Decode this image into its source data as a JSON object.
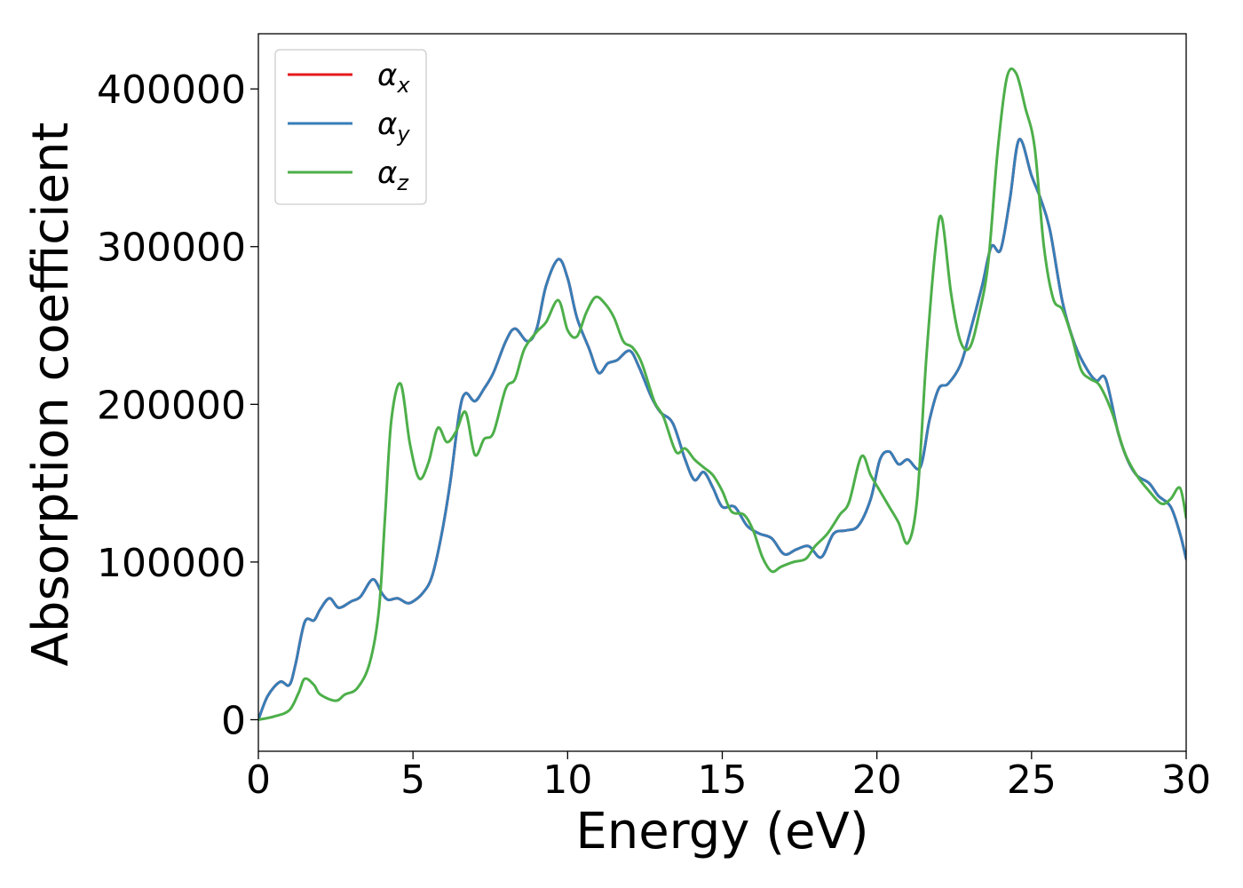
{
  "chart_data": {
    "type": "line",
    "title": "",
    "xlabel": "Energy (eV)",
    "ylabel": "Absorption coefficient",
    "xlim": [
      0,
      30
    ],
    "ylim": [
      -20000,
      435000
    ],
    "xticks": [
      0,
      5,
      10,
      15,
      20,
      25,
      30
    ],
    "xtick_labels": [
      "0",
      "5",
      "10",
      "15",
      "20",
      "25",
      "30"
    ],
    "yticks": [
      0,
      100000,
      200000,
      300000,
      400000
    ],
    "ytick_labels": [
      "0",
      "100000",
      "200000",
      "300000",
      "400000"
    ],
    "grid": false,
    "legend_position": "upper-left",
    "series": [
      {
        "name": "α_x",
        "legend_base": "α",
        "legend_sub": "x",
        "color": "#e41a1c",
        "x": [
          0,
          0.3,
          0.7,
          1.0,
          1.2,
          1.5,
          1.8,
          2.0,
          2.3,
          2.6,
          3.0,
          3.3,
          3.7,
          4.0,
          4.2,
          4.5,
          4.8,
          5.0,
          5.3,
          5.6,
          5.9,
          6.2,
          6.5,
          6.7,
          7.0,
          7.3,
          7.6,
          8.0,
          8.3,
          8.7,
          9.0,
          9.3,
          9.7,
          10.0,
          10.3,
          10.7,
          11.0,
          11.3,
          11.6,
          12.0,
          12.3,
          12.7,
          13.0,
          13.4,
          13.8,
          14.1,
          14.4,
          14.7,
          15.0,
          15.4,
          15.8,
          16.2,
          16.6,
          17.0,
          17.4,
          17.8,
          18.2,
          18.6,
          19.0,
          19.4,
          19.8,
          20.1,
          20.4,
          20.7,
          21.0,
          21.4,
          21.7,
          22.0,
          22.3,
          22.7,
          23.0,
          23.4,
          23.7,
          24.0,
          24.3,
          24.6,
          25.0,
          25.3,
          25.6,
          26.0,
          26.4,
          26.8,
          27.1,
          27.4,
          27.8,
          28.1,
          28.4,
          28.8,
          29.1,
          29.5,
          29.8,
          30.0
        ],
        "values": [
          0,
          15000,
          24000,
          22000,
          35000,
          62000,
          63000,
          70000,
          77000,
          71000,
          75000,
          78000,
          89000,
          80000,
          76000,
          77000,
          74000,
          75000,
          80000,
          90000,
          115000,
          150000,
          195000,
          207000,
          202000,
          210000,
          220000,
          240000,
          248000,
          240000,
          248000,
          275000,
          292000,
          280000,
          255000,
          235000,
          220000,
          226000,
          228000,
          234000,
          224000,
          205000,
          195000,
          188000,
          165000,
          152000,
          157000,
          147000,
          135000,
          135000,
          123000,
          118000,
          115000,
          105000,
          108000,
          110000,
          103000,
          118000,
          120000,
          123000,
          140000,
          165000,
          170000,
          162000,
          165000,
          160000,
          190000,
          210000,
          213000,
          225000,
          245000,
          275000,
          300000,
          298000,
          330000,
          368000,
          345000,
          330000,
          310000,
          265000,
          238000,
          222000,
          215000,
          216000,
          182000,
          165000,
          155000,
          150000,
          142000,
          135000,
          118000,
          102000
        ]
      },
      {
        "name": "α_y",
        "legend_base": "α",
        "legend_sub": "y",
        "color": "#377eb8",
        "x": [
          0,
          0.3,
          0.7,
          1.0,
          1.2,
          1.5,
          1.8,
          2.0,
          2.3,
          2.6,
          3.0,
          3.3,
          3.7,
          4.0,
          4.2,
          4.5,
          4.8,
          5.0,
          5.3,
          5.6,
          5.9,
          6.2,
          6.5,
          6.7,
          7.0,
          7.3,
          7.6,
          8.0,
          8.3,
          8.7,
          9.0,
          9.3,
          9.7,
          10.0,
          10.3,
          10.7,
          11.0,
          11.3,
          11.6,
          12.0,
          12.3,
          12.7,
          13.0,
          13.4,
          13.8,
          14.1,
          14.4,
          14.7,
          15.0,
          15.4,
          15.8,
          16.2,
          16.6,
          17.0,
          17.4,
          17.8,
          18.2,
          18.6,
          19.0,
          19.4,
          19.8,
          20.1,
          20.4,
          20.7,
          21.0,
          21.4,
          21.7,
          22.0,
          22.3,
          22.7,
          23.0,
          23.4,
          23.7,
          24.0,
          24.3,
          24.6,
          25.0,
          25.3,
          25.6,
          26.0,
          26.4,
          26.8,
          27.1,
          27.4,
          27.8,
          28.1,
          28.4,
          28.8,
          29.1,
          29.5,
          29.8,
          30.0
        ],
        "values": [
          0,
          15000,
          24000,
          22000,
          35000,
          62000,
          63000,
          70000,
          77000,
          71000,
          75000,
          78000,
          89000,
          80000,
          76000,
          77000,
          74000,
          75000,
          80000,
          90000,
          115000,
          150000,
          195000,
          207000,
          202000,
          210000,
          220000,
          240000,
          248000,
          240000,
          248000,
          275000,
          292000,
          280000,
          255000,
          235000,
          220000,
          226000,
          228000,
          234000,
          224000,
          205000,
          195000,
          188000,
          165000,
          152000,
          157000,
          147000,
          135000,
          135000,
          123000,
          118000,
          115000,
          105000,
          108000,
          110000,
          103000,
          118000,
          120000,
          123000,
          140000,
          165000,
          170000,
          162000,
          165000,
          160000,
          190000,
          210000,
          213000,
          225000,
          245000,
          275000,
          300000,
          298000,
          330000,
          368000,
          345000,
          330000,
          310000,
          265000,
          238000,
          222000,
          215000,
          216000,
          182000,
          165000,
          155000,
          150000,
          142000,
          135000,
          118000,
          102000
        ]
      },
      {
        "name": "α_z",
        "legend_base": "α",
        "legend_sub": "z",
        "color": "#4daf4a",
        "x": [
          0,
          0.5,
          1.0,
          1.3,
          1.5,
          1.8,
          2.0,
          2.5,
          2.8,
          3.2,
          3.6,
          3.9,
          4.1,
          4.3,
          4.6,
          4.9,
          5.2,
          5.5,
          5.8,
          6.1,
          6.4,
          6.7,
          7.0,
          7.3,
          7.6,
          8.0,
          8.3,
          8.6,
          9.0,
          9.3,
          9.7,
          10.0,
          10.3,
          10.6,
          10.9,
          11.2,
          11.5,
          11.8,
          12.1,
          12.4,
          12.8,
          13.1,
          13.5,
          13.8,
          14.1,
          14.4,
          14.7,
          15.0,
          15.3,
          15.7,
          16.0,
          16.3,
          16.6,
          16.9,
          17.3,
          17.7,
          18.0,
          18.4,
          18.8,
          19.1,
          19.5,
          19.8,
          20.1,
          20.4,
          20.7,
          21.0,
          21.3,
          21.6,
          21.9,
          22.1,
          22.4,
          22.7,
          23.0,
          23.3,
          23.6,
          23.9,
          24.2,
          24.5,
          24.8,
          25.1,
          25.4,
          25.7,
          26.0,
          26.3,
          26.6,
          26.9,
          27.2,
          27.6,
          28.0,
          28.4,
          28.8,
          29.2,
          29.5,
          29.8,
          30.0
        ],
        "values": [
          0,
          2000,
          6000,
          17000,
          26000,
          22000,
          16000,
          12000,
          16000,
          20000,
          36000,
          70000,
          130000,
          190000,
          213000,
          175000,
          153000,
          163000,
          185000,
          176000,
          183000,
          195000,
          168000,
          178000,
          182000,
          210000,
          216000,
          235000,
          246000,
          252000,
          266000,
          247000,
          243000,
          258000,
          268000,
          264000,
          255000,
          240000,
          236000,
          226000,
          202000,
          192000,
          170000,
          172000,
          165000,
          160000,
          155000,
          145000,
          132000,
          130000,
          120000,
          103000,
          94000,
          97000,
          100000,
          102000,
          110000,
          118000,
          130000,
          138000,
          167000,
          155000,
          145000,
          135000,
          125000,
          112000,
          140000,
          230000,
          300000,
          318000,
          270000,
          240000,
          236000,
          257000,
          290000,
          360000,
          407000,
          410000,
          388000,
          363000,
          300000,
          267000,
          260000,
          243000,
          222000,
          216000,
          212000,
          195000,
          170000,
          155000,
          145000,
          137000,
          140000,
          147000,
          128000
        ]
      }
    ]
  }
}
